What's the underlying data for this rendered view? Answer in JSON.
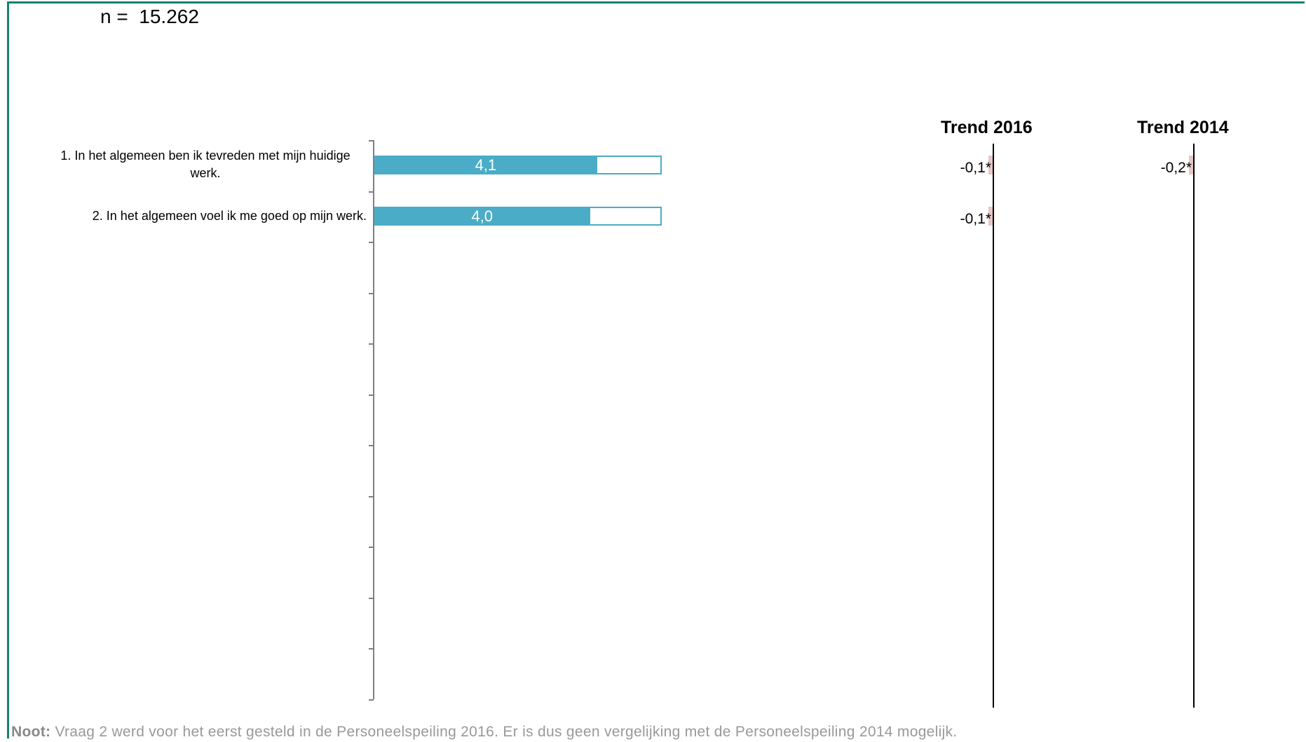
{
  "sample": {
    "prefix": "n =",
    "value": "15.262"
  },
  "chart_data": {
    "type": "bar",
    "orientation": "horizontal",
    "scale": [
      1,
      5
    ],
    "categories": [
      "1. In het algemeen ben ik tevreden met mijn huidige werk.",
      "2. In het algemeen voel ik me goed op mijn werk."
    ],
    "values": [
      4.1,
      4.0
    ],
    "value_labels": [
      "4,1",
      "4,0"
    ],
    "colors": {
      "bar": "#4aacc6",
      "trend_marker": "#e8c7c7",
      "frame": "#1a7f74"
    },
    "trends": [
      {
        "title": "Trend 2016",
        "values": [
          "-0,1*",
          "-0,1*"
        ]
      },
      {
        "title": "Trend 2014",
        "values": [
          "-0,2*",
          ""
        ]
      }
    ]
  },
  "note": {
    "label": "Noot:",
    "text": "Vraag 2 werd voor het eerst gesteld in de Personeelspeiling 2016. Er is dus geen vergelijking met de Personeelspeiling 2014 mogelijk."
  }
}
